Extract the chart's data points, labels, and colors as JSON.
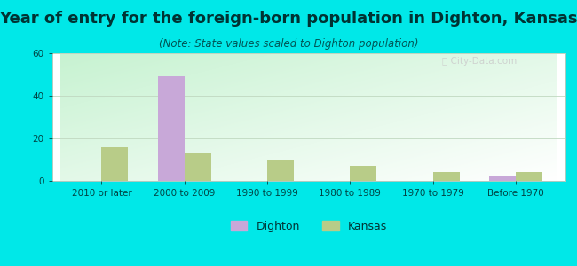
{
  "title": "Year of entry for the foreign-born population in Dighton, Kansas",
  "subtitle": "(Note: State values scaled to Dighton population)",
  "categories": [
    "2010 or later",
    "2000 to 2009",
    "1990 to 1999",
    "1980 to 1989",
    "1970 to 1979",
    "Before 1970"
  ],
  "dighton_values": [
    0,
    49,
    0,
    0,
    0,
    2
  ],
  "kansas_values": [
    16,
    13,
    10,
    7,
    4,
    4
  ],
  "dighton_color": "#c8a8d8",
  "kansas_color": "#b8cc88",
  "ylim": [
    0,
    60
  ],
  "yticks": [
    0,
    20,
    40,
    60
  ],
  "background_color": "#00e8e8",
  "bar_width": 0.32,
  "title_fontsize": 13,
  "subtitle_fontsize": 8.5,
  "tick_fontsize": 7.5,
  "legend_fontsize": 9
}
